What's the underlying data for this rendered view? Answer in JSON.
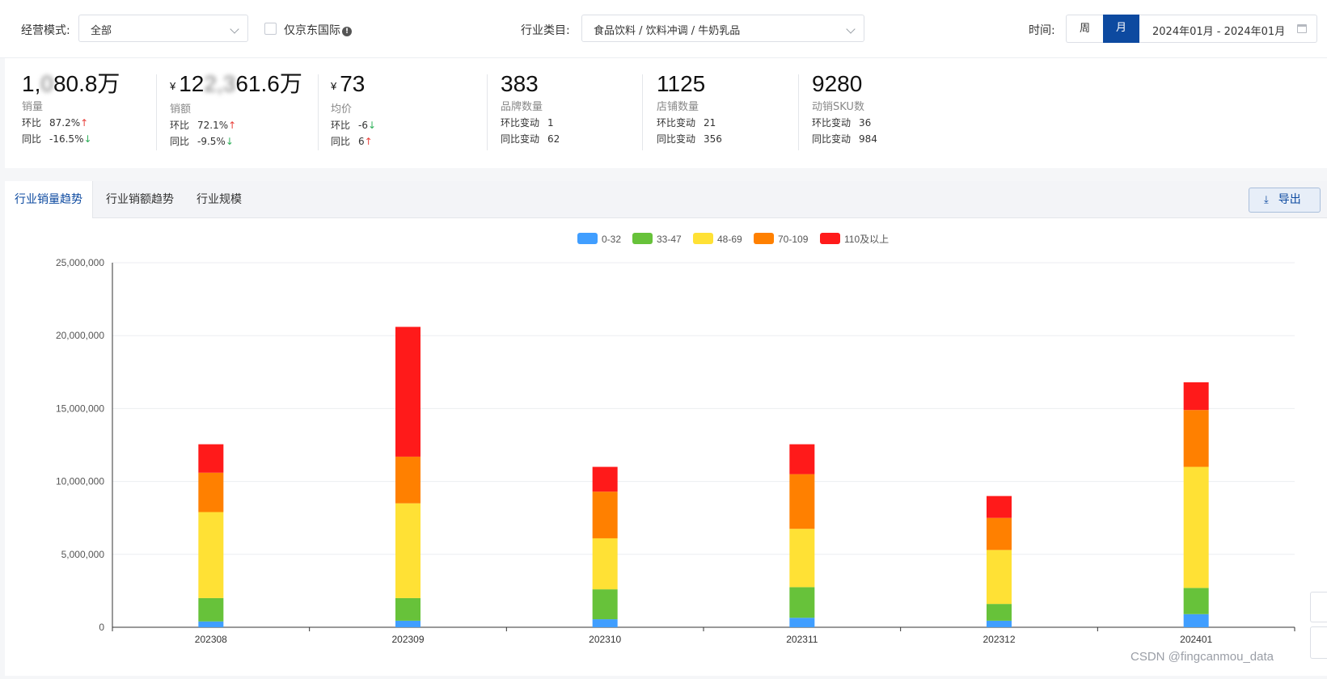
{
  "filters": {
    "mode_label": "经营模式:",
    "mode_value": "全部",
    "jd_intl_label": "仅京东国际",
    "jd_intl_checked": false,
    "category_label": "行业类目:",
    "category_value": "食品饮料 / 饮料冲调 / 牛奶乳品",
    "time_label": "时间:",
    "period_week": "周",
    "period_month": "月",
    "period_selected": "月",
    "date_range": "2024年01月 - 2024年01月"
  },
  "metrics": [
    {
      "value_main": "1,",
      "value_blurred": "0",
      "value_rest": "80.8万",
      "currency": "",
      "name": "销量",
      "mom_label": "环比",
      "mom_value": "87.2%",
      "mom_dir": "up",
      "yoy_label": "同比",
      "yoy_value": "-16.5%",
      "yoy_dir": "down"
    },
    {
      "value_main": "12",
      "value_blurred": "2,3",
      "value_rest": "61.6万",
      "currency": "¥",
      "name": "销额",
      "mom_label": "环比",
      "mom_value": "72.1%",
      "mom_dir": "up",
      "yoy_label": "同比",
      "yoy_value": "-9.5%",
      "yoy_dir": "down"
    },
    {
      "value_main": "73",
      "value_blurred": "",
      "value_rest": "",
      "currency": "¥",
      "name": "均价",
      "mom_label": "环比",
      "mom_value": "-6",
      "mom_dir": "down",
      "yoy_label": "同比",
      "yoy_value": "6",
      "yoy_dir": "up"
    },
    {
      "value_main": "383",
      "value_blurred": "",
      "value_rest": "",
      "currency": "",
      "name": "品牌数量",
      "mom_label": "环比变动",
      "mom_value": "1",
      "mom_dir": "",
      "yoy_label": "同比变动",
      "yoy_value": "62",
      "yoy_dir": ""
    },
    {
      "value_main": "1125",
      "value_blurred": "",
      "value_rest": "",
      "currency": "",
      "name": "店铺数量",
      "mom_label": "环比变动",
      "mom_value": "21",
      "mom_dir": "",
      "yoy_label": "同比变动",
      "yoy_value": "356",
      "yoy_dir": ""
    },
    {
      "value_main": "9280",
      "value_blurred": "",
      "value_rest": "",
      "currency": "",
      "name": "动销SKU数",
      "mom_label": "环比变动",
      "mom_value": "36",
      "mom_dir": "",
      "yoy_label": "同比变动",
      "yoy_value": "984",
      "yoy_dir": ""
    }
  ],
  "tabs": [
    {
      "label": "行业销量趋势",
      "active": true
    },
    {
      "label": "行业销额趋势",
      "active": false
    },
    {
      "label": "行业规模",
      "active": false
    }
  ],
  "export_label": "导出",
  "watermark": "CSDN @fingcanmou_data",
  "chart_data": {
    "type": "bar",
    "stacked": true,
    "categories": [
      "202308",
      "202309",
      "202310",
      "202311",
      "202312",
      "202401"
    ],
    "series": [
      {
        "name": "0-32",
        "color": "#409eff",
        "values": [
          400000,
          450000,
          550000,
          650000,
          450000,
          900000
        ]
      },
      {
        "name": "33-47",
        "color": "#67c23a",
        "values": [
          1600000,
          1550000,
          2050000,
          2100000,
          1150000,
          1800000
        ]
      },
      {
        "name": "48-69",
        "color": "#ffe135",
        "values": [
          5900000,
          6500000,
          3500000,
          4000000,
          3700000,
          8300000
        ]
      },
      {
        "name": "70-109",
        "color": "#ff8000",
        "values": [
          2700000,
          3200000,
          3200000,
          3750000,
          2200000,
          3900000
        ]
      },
      {
        "name": "110及以上",
        "color": "#ff1a1a",
        "values": [
          1950000,
          8900000,
          1700000,
          2050000,
          1500000,
          1900000
        ]
      }
    ],
    "ylim": [
      0,
      25000000
    ],
    "yticks": [
      "0",
      "5,000,000",
      "10,000,000",
      "15,000,000",
      "20,000,000",
      "25,000,000"
    ],
    "ytick_values": [
      0,
      5000000,
      10000000,
      15000000,
      20000000,
      25000000
    ],
    "legend_position": "top-center",
    "grid": true
  }
}
